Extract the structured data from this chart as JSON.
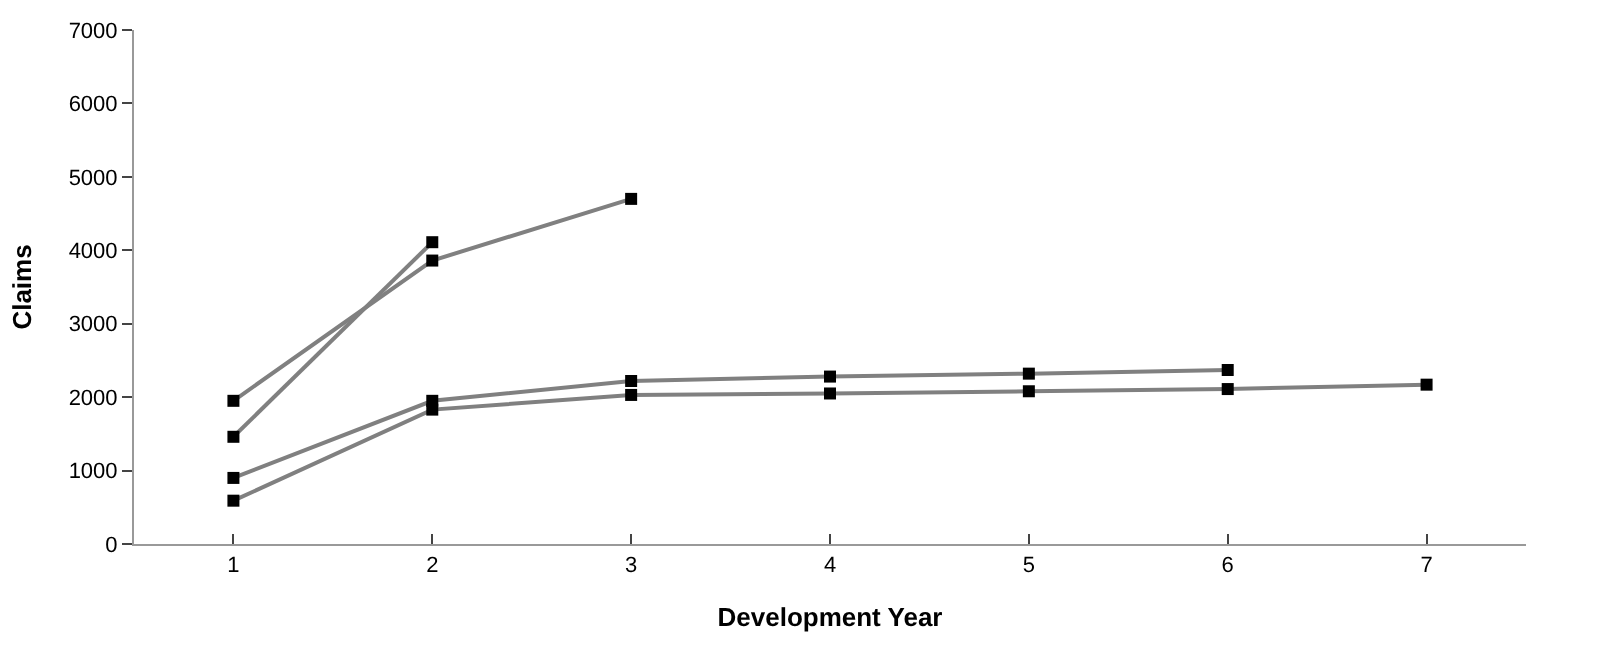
{
  "chart_data": {
    "type": "line",
    "xlabel": "Development Year",
    "ylabel": "Claims",
    "categories": [
      "1",
      "2",
      "3",
      "4",
      "5",
      "6",
      "7"
    ],
    "ylim": [
      0,
      7000
    ],
    "yticks": [
      0,
      1000,
      2000,
      3000,
      4000,
      5000,
      6000,
      7000
    ],
    "marker": "square",
    "line_style": "solid",
    "legend": false,
    "series": [
      {
        "color": "#808080",
        "values": [
          1950,
          3860,
          4700,
          null,
          null,
          null,
          null
        ]
      },
      {
        "color": "#808080",
        "values": [
          1460,
          4110,
          null,
          null,
          null,
          null,
          null
        ]
      },
      {
        "color": "#808080",
        "values": [
          900,
          1950,
          2220,
          2280,
          2320,
          2370,
          null
        ]
      },
      {
        "color": "#808080",
        "values": [
          590,
          1830,
          2030,
          2050,
          2080,
          2110,
          2170
        ]
      }
    ]
  }
}
